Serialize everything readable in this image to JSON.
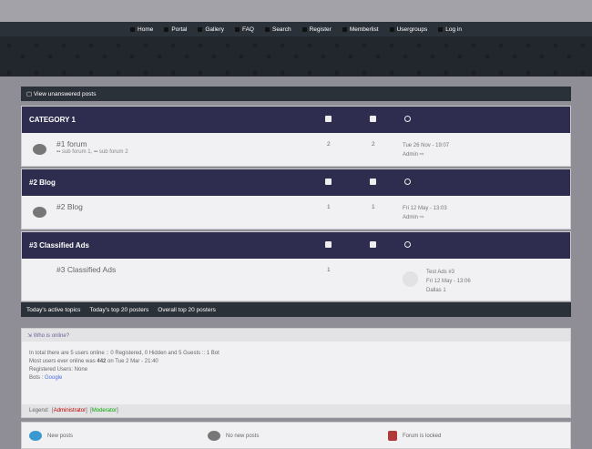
{
  "nav": {
    "items": [
      {
        "label": "Home",
        "icon": "home-icon"
      },
      {
        "label": "Portal",
        "icon": "portal-icon"
      },
      {
        "label": "Gallery",
        "icon": "gallery-icon"
      },
      {
        "label": "FAQ",
        "icon": "faq-icon"
      },
      {
        "label": "Search",
        "icon": "search-icon"
      },
      {
        "label": "Register",
        "icon": "register-icon"
      },
      {
        "label": "Memberlist",
        "icon": "memberlist-icon"
      },
      {
        "label": "Usergroups",
        "icon": "usergroups-icon"
      },
      {
        "label": "Log in",
        "icon": "login-icon"
      }
    ]
  },
  "unanswered": "View unanswered posts",
  "categories": [
    {
      "title": "CATEGORY 1",
      "forum": {
        "title": "#1 forum",
        "subforums": [
          "sub forum 1",
          "sub forum 2"
        ],
        "topics": "2",
        "posts": "2",
        "last_date": "Tue 26 Nov - 19:07",
        "last_user": "Admin"
      }
    },
    {
      "title": "#2 Blog",
      "forum": {
        "title": "#2 Blog",
        "topics": "1",
        "posts": "1",
        "last_date": "Fri 12 May - 13:03",
        "last_user": "Admin"
      }
    },
    {
      "title": "#3 Classified Ads",
      "forum": {
        "title": "#3 Classified Ads",
        "topics": "1",
        "last_topic": "Test Ads #3",
        "last_date": "Fri 12 May - 13:06",
        "last_user": "Dallas 1"
      }
    }
  ],
  "links": [
    "Today's active topics",
    "Today's top 20 posters",
    "Overall top 20 posters"
  ],
  "who": {
    "title": "Who is online?",
    "line1": "In total there are 5 users online :: 0 Registered, 0 Hidden and 5 Guests :: 1 Bot",
    "line2_pre": "Most users ever online was ",
    "line2_num": "442",
    "line2_post": " on Tue 2 Mar - 21:40",
    "line3": "Registered Users: None",
    "bots_label": "Bots : ",
    "bot": "Google",
    "legend_label": "Legend:",
    "admin": "Administrator",
    "mod": "Moderator"
  },
  "keys": {
    "new": "New posts",
    "none": "No new posts",
    "locked": "Forum is locked"
  },
  "colors": {
    "category": "#2e2d4f",
    "admin": "#c00000",
    "mod": "#00aa00",
    "new": "#3a9ad0"
  }
}
